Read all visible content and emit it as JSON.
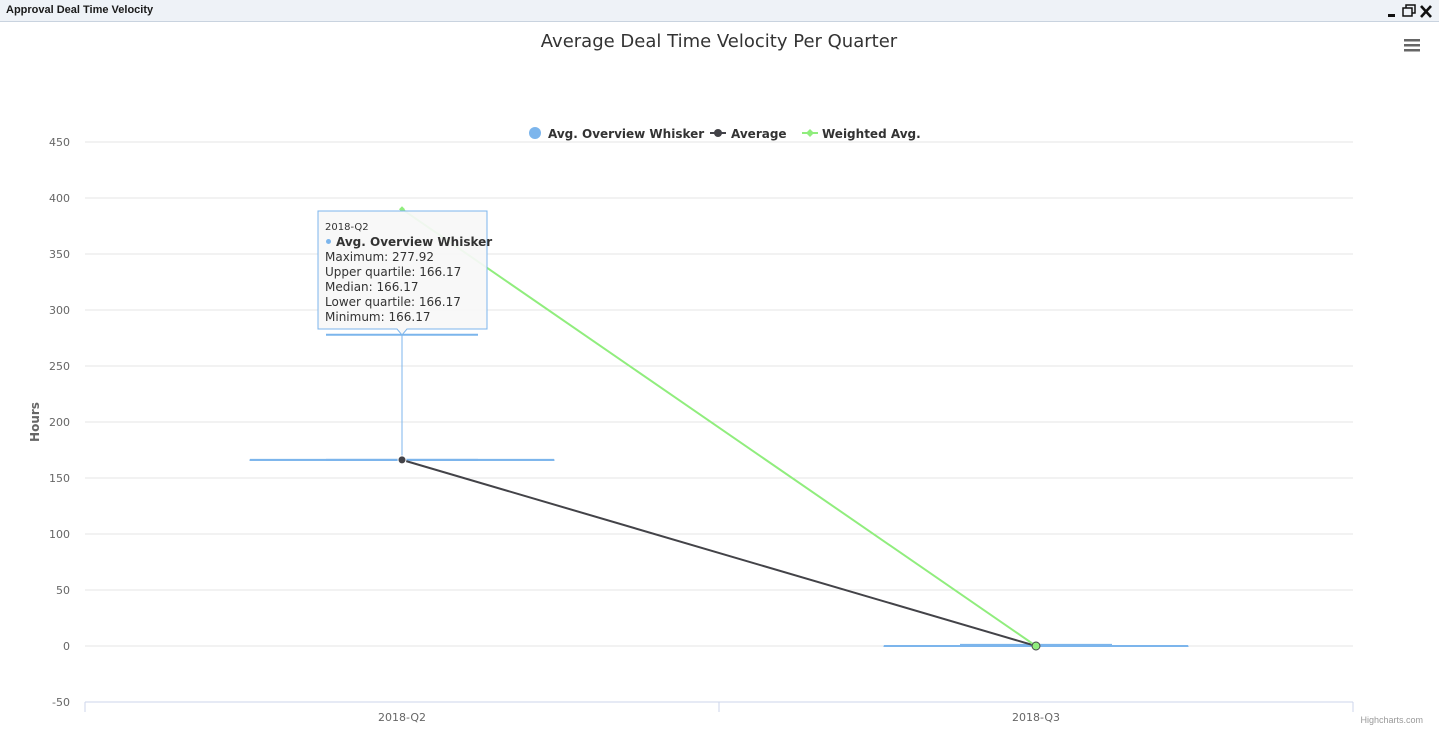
{
  "window": {
    "title": "Approval Deal Time Velocity",
    "buttons": [
      "minimize-icon",
      "restore-icon",
      "close-icon"
    ]
  },
  "menu": {
    "icon": "hamburger-menu-icon"
  },
  "credits": "Highcharts.com",
  "colors": {
    "whisker": "#7cb5ec",
    "average": "#434348",
    "weighted": "#90ed7d",
    "grid": "#e6e6e6"
  },
  "chart_data": {
    "type": "boxplot",
    "title": "Average Deal Time Velocity Per Quarter",
    "xlabel": "",
    "ylabel": "Hours",
    "ylim": [
      -50,
      450
    ],
    "yticks": [
      -50,
      0,
      50,
      100,
      150,
      200,
      250,
      300,
      350,
      400,
      450
    ],
    "categories": [
      "2018-Q2",
      "2018-Q3"
    ],
    "grid": true,
    "legend_position": "top-center",
    "legend": [
      "Avg. Overview Whisker",
      "Average",
      "Weighted Avg."
    ],
    "series": [
      {
        "name": "Avg. Overview Whisker",
        "type": "boxplot",
        "data": [
          {
            "low": 166.17,
            "q1": 166.17,
            "median": 166.17,
            "q3": 166.17,
            "high": 277.92
          },
          {
            "low": 0,
            "q1": 0,
            "median": 0,
            "q3": 0,
            "high": 1
          }
        ]
      },
      {
        "name": "Average",
        "type": "line",
        "values": [
          166.17,
          0
        ]
      },
      {
        "name": "Weighted Avg.",
        "type": "line",
        "values": [
          390,
          0
        ]
      }
    ],
    "tooltip": {
      "category": "2018-Q2",
      "series": "Avg. Overview Whisker",
      "lines": [
        "Maximum: 277.92",
        "Upper quartile: 166.17",
        "Median: 166.17",
        "Lower quartile: 166.17",
        "Minimum: 166.17"
      ]
    }
  }
}
